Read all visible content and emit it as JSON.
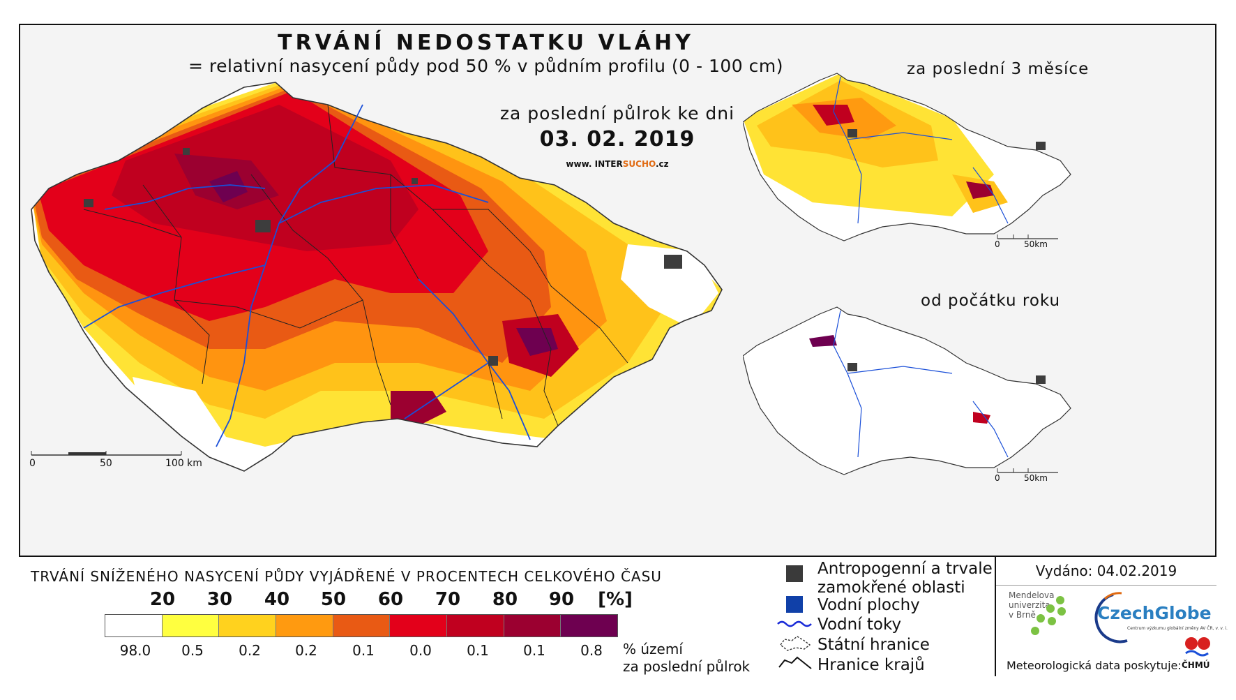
{
  "header": {
    "title": "TRVÁNÍ NEDOSTATKU VLÁHY",
    "subtitle": "= relativní nasycení půdy pod 50 % v půdním profilu (0 - 100 cm)",
    "period": "za poslední půlrok ke dni",
    "date": "03. 02. 2019",
    "www_prefix": "www. INTER",
    "www_accent": "SUCHO",
    "www_suffix": ".cz"
  },
  "main_map": {
    "scale_labels": [
      "0",
      "50",
      "100 km"
    ]
  },
  "insets": [
    {
      "label": "za poslední 3 měsíce",
      "scale_labels": [
        "0",
        "50km"
      ]
    },
    {
      "label": "od počátku roku",
      "scale_labels": [
        "0",
        "50km"
      ]
    }
  ],
  "legend": {
    "title": "TRVÁNÍ SNÍŽENÉHO NASYCENÍ PŮDY VYJÁDŘENÉ V PROCENTECH CELKOVÉHO ČASU",
    "class_breaks": [
      "20",
      "30",
      "40",
      "50",
      "60",
      "70",
      "80",
      "90"
    ],
    "unit": "[%]",
    "colors": [
      "#ffffff",
      "#ffff40",
      "#ffd21e",
      "#ff9a10",
      "#e95a14",
      "#e3001a",
      "#c0001f",
      "#9b0030",
      "#6e0050"
    ],
    "percent_area": [
      "98.0",
      "0.5",
      "0.2",
      "0.2",
      "0.1",
      "0.0",
      "0.1",
      "0.1",
      "0.8"
    ],
    "percent_area_label_1": "% území",
    "percent_area_label_2": "za poslední půlrok"
  },
  "symbols": {
    "urban_line1": "Antropogenní a trvale",
    "urban_line2": "zamokřené oblasti",
    "water_bodies": "Vodní plochy",
    "rivers": "Vodní toky",
    "state_border": "Státní hranice",
    "region_border": "Hranice krajů",
    "urban_color": "#3a3a3a",
    "water_color": "#1040a8",
    "river_color": "#1a2bd8"
  },
  "issuer": {
    "issued": "Vydáno: 04.02.2019",
    "mendel_1": "Mendelova",
    "mendel_2": "univerzita",
    "mendel_3": "v Brně",
    "czechglobe": "CzechGlobe",
    "czechglobe_sub": "Centrum výzkumu globální změny AV ČR, v. v. i.",
    "data_provider": "Meteorologická data poskytuje:",
    "chmu": "ČHMÚ"
  }
}
